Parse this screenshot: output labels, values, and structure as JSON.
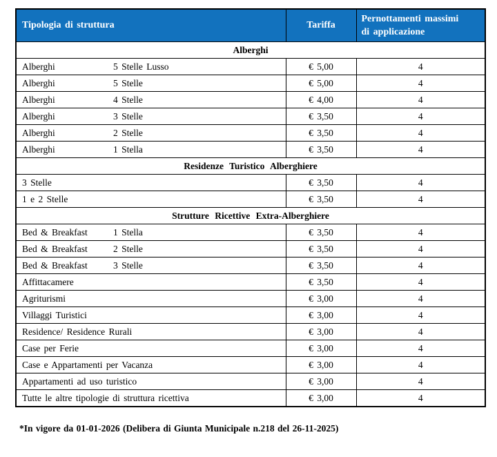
{
  "accent_color": "#1272BE",
  "table": {
    "header": {
      "tipologia": "Tipologia di struttura",
      "tariffa": "Tariffa",
      "pernottamenti_line1": "Pernottamenti massimi",
      "pernottamenti_line2": "di applicazione"
    },
    "sections": [
      {
        "title": "Alberghi",
        "rows": [
          {
            "type": "Alberghi",
            "category": "5 Stelle Lusso",
            "tariff": "€ 5,00",
            "max": "4"
          },
          {
            "type": "Alberghi",
            "category": "5 Stelle",
            "tariff": "€ 5,00",
            "max": "4"
          },
          {
            "type": "Alberghi",
            "category": "4 Stelle",
            "tariff": "€ 4,00",
            "max": "4"
          },
          {
            "type": "Alberghi",
            "category": "3 Stelle",
            "tariff": "€ 3,50",
            "max": "4"
          },
          {
            "type": "Alberghi",
            "category": "2 Stelle",
            "tariff": "€ 3,50",
            "max": "4"
          },
          {
            "type": "Alberghi",
            "category": "1 Stella",
            "tariff": "€ 3,50",
            "max": "4"
          }
        ]
      },
      {
        "title": "Residenze Turistico Alberghiere",
        "rows": [
          {
            "type": "3 Stelle",
            "category": "",
            "tariff": "€ 3,50",
            "max": "4"
          },
          {
            "type": "1 e 2 Stelle",
            "category": "",
            "tariff": "€ 3,50",
            "max": "4"
          }
        ]
      },
      {
        "title": "Strutture Ricettive Extra-Alberghiere",
        "rows": [
          {
            "type": "Bed & Breakfast",
            "category": "1 Stella",
            "tariff": "€ 3,50",
            "max": "4"
          },
          {
            "type": "Bed & Breakfast",
            "category": "2 Stelle",
            "tariff": "€ 3,50",
            "max": "4"
          },
          {
            "type": "Bed & Breakfast",
            "category": "3 Stelle",
            "tariff": "€ 3,50",
            "max": "4"
          },
          {
            "type": "Affittacamere",
            "category": "",
            "tariff": "€ 3,50",
            "max": "4"
          },
          {
            "type": "Agriturismi",
            "category": "",
            "tariff": "€ 3,00",
            "max": "4"
          },
          {
            "type": "Villaggi Turistici",
            "category": "",
            "tariff": "€ 3,00",
            "max": "4"
          },
          {
            "type": "Residence/ Residence Rurali",
            "category": "",
            "tariff": "€ 3,00",
            "max": "4"
          },
          {
            "type": "Case per Ferie",
            "category": "",
            "tariff": "€ 3,00",
            "max": "4"
          },
          {
            "type": "Case e Appartamenti per Vacanza",
            "category": "",
            "tariff": "€ 3,00",
            "max": "4"
          },
          {
            "type": "Appartamenti ad uso turistico",
            "category": "",
            "tariff": "€ 3,00",
            "max": "4"
          },
          {
            "type": "Tutte le altre tipologie di struttura ricettiva",
            "category": "",
            "tariff": "€ 3,00",
            "max": "4"
          }
        ]
      }
    ]
  },
  "footnote": "*In vigore da 01-01-2026 (Delibera di Giunta Municipale n.218 del 26-11-2025)"
}
